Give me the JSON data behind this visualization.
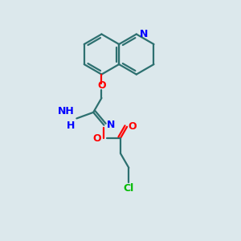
{
  "background_color": "#dce8ec",
  "bond_color": "#2d7070",
  "N_color": "#0000ff",
  "O_color": "#ff0000",
  "Cl_color": "#00bb00",
  "line_width": 1.6,
  "figsize": [
    3.0,
    3.0
  ],
  "dpi": 100,
  "xlim": [
    0,
    10
  ],
  "ylim": [
    0,
    10
  ]
}
